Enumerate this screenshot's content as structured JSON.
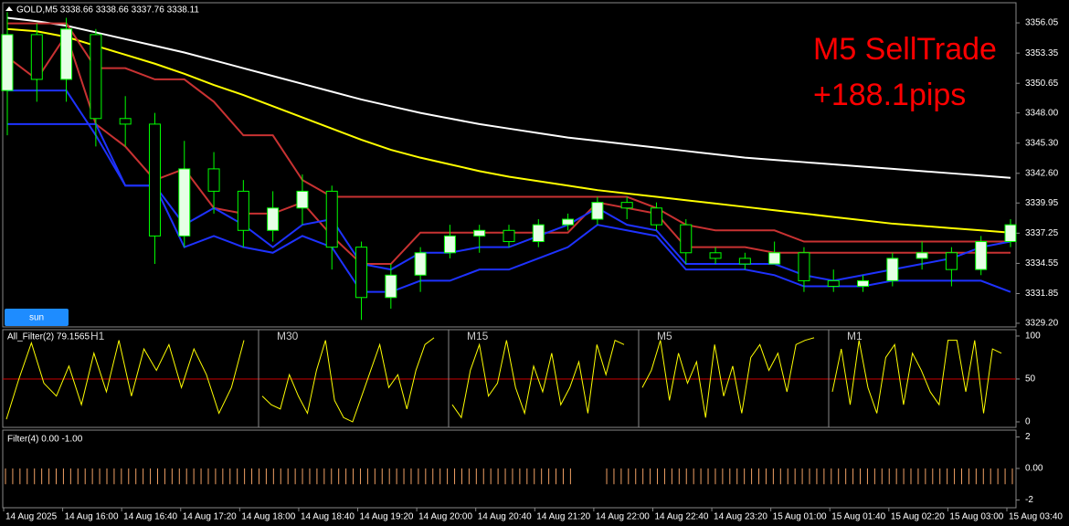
{
  "chart_data": [
    {
      "type": "candlestick",
      "title": "GOLD,M5  3338.66 3338.66 3337.76 3338.11",
      "annotations": [
        "M5 SellTrade",
        "+188.1pips"
      ],
      "button": "sun",
      "categories": [
        "14 Aug 2025",
        null,
        "14 Aug 16:00",
        null,
        "14 Aug 16:40",
        null,
        "14 Aug 17:20",
        null,
        "14 Aug 18:00",
        null,
        "14 Aug 18:40",
        null,
        "14 Aug 19:20",
        null,
        "14 Aug 20:00",
        null,
        "14 Aug 20:40",
        null,
        "14 Aug 21:20",
        null,
        "14 Aug 22:00",
        null,
        "14 Aug 22:40",
        null,
        "14 Aug 23:20",
        null,
        "15 Aug 01:00",
        null,
        "15 Aug 01:40",
        null,
        "15 Aug 02:20",
        null,
        "15 Aug 03:00",
        null,
        "15 Aug 03:40"
      ],
      "open": [
        3350,
        3355,
        3351,
        3355,
        3347.5,
        3347,
        3337,
        3343,
        3341,
        3337.5,
        3339.5,
        3341,
        3336,
        3331.5,
        3333.5,
        3335.5,
        3337,
        3337.5,
        3336.5,
        3338,
        3338.5,
        3340,
        3339.5,
        3338,
        3335.5,
        3335,
        3334.5,
        3335.5,
        3333,
        3332.5,
        3333,
        3335,
        3335.5,
        3334,
        3336.5
      ],
      "high": [
        3357,
        3356,
        3356.5,
        3355.5,
        3349.5,
        3348,
        3345.5,
        3344.5,
        3342,
        3341,
        3342.5,
        3341.5,
        3336.5,
        3334.5,
        3336,
        3338,
        3338,
        3338,
        3338.5,
        3339,
        3340.5,
        3340.5,
        3340,
        3338.5,
        3336,
        3335.5,
        3336.5,
        3336,
        3334,
        3333.5,
        3335.5,
        3336.5,
        3336,
        3337,
        3338.5
      ],
      "low": [
        3346,
        3349,
        3349,
        3345,
        3345,
        3334.5,
        3336,
        3339,
        3336,
        3336.5,
        3338,
        3334,
        3329.5,
        3330.5,
        3332,
        3335,
        3335.5,
        3336,
        3336,
        3337.5,
        3338,
        3338.5,
        3337.5,
        3334.5,
        3334.5,
        3334,
        3334.5,
        3332,
        3332,
        3332,
        3332.5,
        3334,
        3332.5,
        3333.5,
        3336
      ],
      "close": [
        3355,
        3351,
        3355.5,
        3347.5,
        3347,
        3337,
        3343,
        3341,
        3337.5,
        3339.5,
        3341,
        3336,
        3331.5,
        3333.5,
        3335.5,
        3337,
        3337.5,
        3336.5,
        3338,
        3338.5,
        3340,
        3339.5,
        3338,
        3335.5,
        3335,
        3334.5,
        3335.5,
        3333,
        3332.5,
        3333,
        3335,
        3335.5,
        3334,
        3336.5,
        3338
      ],
      "up_color": "#e6ffe6",
      "down_color": "#000000",
      "wick_color": "#00ff00",
      "series": [
        {
          "color": "#ffffff",
          "values": [
            3356.5,
            3356.2,
            3355.8,
            3355.2,
            3354.6,
            3354.0,
            3353.4,
            3352.7,
            3352.0,
            3351.3,
            3350.6,
            3349.9,
            3349.2,
            3348.6,
            3348.0,
            3347.5,
            3347.0,
            3346.6,
            3346.2,
            3345.8,
            3345.5,
            3345.2,
            3344.9,
            3344.6,
            3344.3,
            3344.0,
            3343.8,
            3343.6,
            3343.4,
            3343.2,
            3343.0,
            3342.8,
            3342.6,
            3342.4,
            3342.2
          ]
        },
        {
          "color": "#ffff00",
          "values": [
            3355.5,
            3355.3,
            3354.8,
            3354.0,
            3353.2,
            3352.4,
            3351.5,
            3350.5,
            3349.6,
            3348.6,
            3347.6,
            3346.6,
            3345.6,
            3344.7,
            3344.0,
            3343.4,
            3342.8,
            3342.3,
            3341.9,
            3341.5,
            3341.1,
            3340.8,
            3340.5,
            3340.2,
            3339.9,
            3339.6,
            3339.3,
            3339.0,
            3338.7,
            3338.4,
            3338.1,
            3337.9,
            3337.7,
            3337.5,
            3337.3
          ]
        },
        {
          "color": "#c83232",
          "values": [
            3356,
            3356,
            3356,
            3352,
            3352,
            3351,
            3351,
            3349,
            3346,
            3346,
            3342,
            3340.5,
            3340.5,
            3340.5,
            3340.5,
            3340.5,
            3340.5,
            3340.5,
            3340.5,
            3340.5,
            3340.5,
            3340.5,
            3339.5,
            3338,
            3337.5,
            3337.5,
            3337.5,
            3336.5,
            3336.5,
            3336.5,
            3336.5,
            3336.5,
            3336.5,
            3336.5,
            3336.5
          ]
        },
        {
          "color": "#c83232",
          "values": [
            3353,
            3351,
            3355,
            3347,
            3345,
            3342,
            3343,
            3339.5,
            3339,
            3339,
            3340,
            3337,
            3334.5,
            3334.5,
            3337.3,
            3337.3,
            3337.3,
            3337.3,
            3337.3,
            3337.3,
            3340,
            3339.5,
            3339,
            3336,
            3336,
            3336,
            3335.5,
            3335.5,
            3335.5,
            3335.5,
            3335.5,
            3335.5,
            3335.5,
            3335.5,
            3335.5
          ]
        },
        {
          "color": "#1e32ff",
          "values": [
            3350,
            3350,
            3350,
            3346,
            3341.5,
            3341.5,
            3338,
            3339.5,
            3338,
            3336,
            3338,
            3338.5,
            3334.5,
            3334,
            3335.5,
            3335.5,
            3336,
            3336,
            3337,
            3338,
            3339.5,
            3338,
            3337.5,
            3334.5,
            3334.5,
            3334.5,
            3334.5,
            3333.5,
            3333,
            3333.5,
            3334,
            3334.5,
            3335,
            3336,
            3336.5
          ]
        },
        {
          "color": "#1e32ff",
          "values": [
            3347,
            3347,
            3347,
            3347,
            3341.5,
            3341.5,
            3336,
            3337,
            3336,
            3335.5,
            3337,
            3336,
            3332,
            3332,
            3333,
            3333,
            3334,
            3334,
            3335,
            3336,
            3338,
            3337.5,
            3337,
            3334,
            3334,
            3334,
            3333.5,
            3332.5,
            3332.5,
            3332.5,
            3333,
            3333,
            3333,
            3333,
            3332
          ]
        }
      ],
      "ylim": [
        3328.87,
        3357.85
      ],
      "yticks": [
        3356.05,
        3353.35,
        3350.65,
        {
          "value": 3348,
          "label": "3348.00"
        },
        {
          "value": 3345.3,
          "label": "3345.30"
        },
        {
          "value": 3342.6,
          "label": "3342.60"
        },
        3339.95,
        3337.25,
        3334.55,
        3331.85,
        {
          "value": 3329.2,
          "label": "3329.20"
        }
      ]
    },
    {
      "type": "oscillator",
      "title": "All_Filter(2) 79.1565",
      "color": "#ffff00",
      "level_color": "#c80000",
      "levels": [
        50
      ],
      "sections": [
        {
          "name": "H1",
          "values": [
            3,
            50,
            92,
            45,
            30,
            65,
            20,
            80,
            35,
            95,
            30,
            85,
            60,
            90,
            40,
            85,
            55,
            10,
            40,
            95
          ]
        },
        {
          "name": "M30",
          "values": [
            30,
            20,
            15,
            55,
            30,
            10,
            60,
            95,
            25,
            5,
            0,
            30,
            60,
            90,
            40,
            55,
            15,
            60,
            90,
            98
          ]
        },
        {
          "name": "M15",
          "values": [
            20,
            5,
            60,
            90,
            30,
            45,
            95,
            40,
            10,
            65,
            35,
            80,
            20,
            40,
            70,
            10,
            90,
            55,
            95,
            90
          ]
        },
        {
          "name": "M5",
          "values": [
            40,
            60,
            95,
            25,
            80,
            45,
            70,
            5,
            90,
            30,
            65,
            10,
            75,
            90,
            60,
            80,
            35,
            90,
            95,
            98
          ]
        },
        {
          "name": "M1",
          "values": [
            35,
            85,
            20,
            95,
            40,
            10,
            75,
            90,
            20,
            80,
            60,
            35,
            20,
            95,
            95,
            35,
            95,
            10,
            85,
            80
          ]
        }
      ],
      "ylim": [
        -6.4,
        107.4
      ],
      "yticks": [
        0,
        50,
        100
      ]
    },
    {
      "type": "histogram",
      "title": "Filter(4) 0.00 -1.00",
      "color": "#f0a064",
      "values": [
        -1,
        -1,
        -1,
        -1,
        -1,
        -1,
        -1,
        -1,
        -1,
        -1,
        -1,
        -1,
        -1,
        -1,
        -1,
        -1,
        -1,
        -1,
        -1,
        -1,
        -1,
        -1,
        -1,
        -1,
        -1,
        -1,
        -1,
        -1,
        -1,
        -1,
        -1,
        -1,
        -1,
        -1,
        -1,
        -1,
        -1,
        -1,
        -1,
        -1,
        -1,
        -1,
        -1,
        -1,
        -1,
        -1,
        -1,
        -1,
        -1,
        -1,
        -1,
        -1,
        -1,
        -1,
        -1,
        -1,
        -1,
        -1,
        -1,
        -1,
        -1,
        -1,
        -1,
        -1,
        -1,
        -1,
        -1,
        -1,
        -1,
        -1,
        -1,
        -1,
        -1,
        -1,
        -1,
        -1,
        -1,
        -1,
        -1,
        0,
        0,
        0,
        0,
        -1,
        -1,
        -1,
        -1,
        -1,
        -1,
        -1,
        -1,
        -1,
        -1,
        -1,
        -1,
        -1,
        -1,
        -1,
        -1,
        -1,
        -1,
        -1,
        -1,
        -1,
        -1,
        -1,
        -1,
        -1,
        -1,
        -1,
        -1,
        -1,
        -1,
        -1,
        -1,
        -1,
        -1,
        -1,
        -1,
        -1,
        -1,
        -1,
        -1,
        -1,
        -1,
        -1,
        -1,
        -1,
        -1,
        -1,
        -1,
        -1,
        -1,
        -1,
        -1,
        -1,
        -1,
        -1,
        -1,
        -1
      ],
      "ylim": [
        -2.49,
        2.43
      ],
      "yticks": [
        2,
        {
          "value": 0,
          "label": "0.00"
        },
        -2
      ]
    }
  ]
}
